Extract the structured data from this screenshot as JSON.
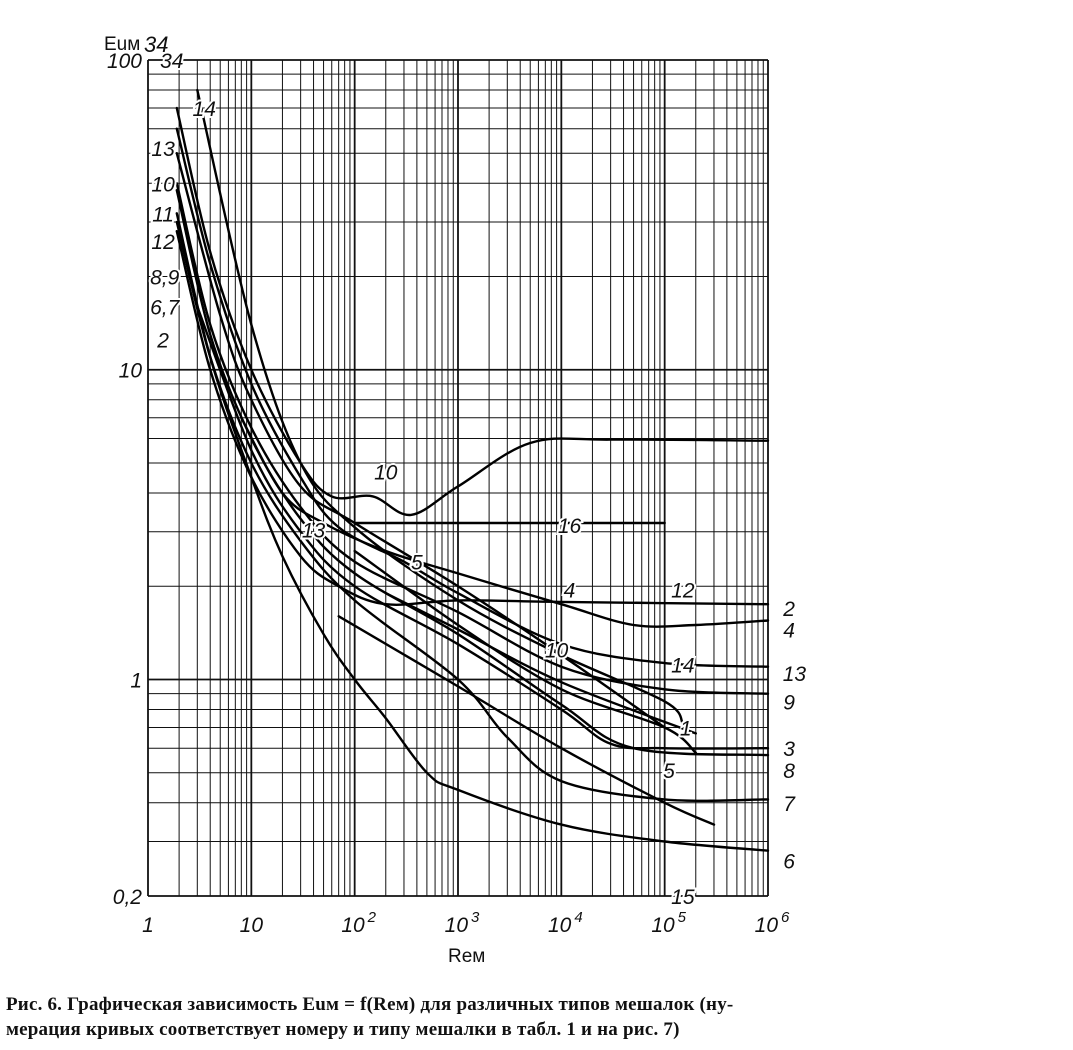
{
  "chart_data": {
    "type": "line",
    "x_scale": "log",
    "y_scale": "log",
    "xlim": [
      1,
      1000000
    ],
    "ylim": [
      0.2,
      100
    ],
    "grid": true,
    "ylabel": "Euм",
    "xlabel": "Reм",
    "y_top_marker": "34",
    "y_tick_labels": [
      {
        "value": 100,
        "label": "100"
      },
      {
        "value": 10,
        "label": "10"
      },
      {
        "value": 1,
        "label": "1"
      },
      {
        "value": 0.2,
        "label": "0,2"
      }
    ],
    "x_tick_labels": [
      {
        "value": 1,
        "label": "1",
        "exp": ""
      },
      {
        "value": 10,
        "label": "10",
        "exp": ""
      },
      {
        "value": 100,
        "label": "10",
        "exp": "2"
      },
      {
        "value": 1000,
        "label": "10",
        "exp": "3"
      },
      {
        "value": 10000,
        "label": "10",
        "exp": "4"
      },
      {
        "value": 100000,
        "label": "10",
        "exp": "5"
      },
      {
        "value": 1000000,
        "label": "10",
        "exp": "6"
      }
    ],
    "series": [
      {
        "name": "2",
        "points": [
          [
            1.9,
            28
          ],
          [
            4,
            10
          ],
          [
            10,
            4.5
          ],
          [
            30,
            2.5
          ],
          [
            70,
            2.0
          ],
          [
            200,
            1.75
          ],
          [
            1000,
            1.8
          ],
          [
            10000,
            1.78
          ],
          [
            1000000,
            1.75
          ]
        ]
      },
      {
        "name": "4",
        "points": [
          [
            8,
            7
          ],
          [
            20,
            4
          ],
          [
            50,
            3.2
          ],
          [
            200,
            2.6
          ],
          [
            1000,
            2.2
          ],
          [
            10000,
            1.75
          ],
          [
            50000,
            1.5
          ],
          [
            200000,
            1.5
          ],
          [
            1000000,
            1.55
          ]
        ]
      },
      {
        "name": "13",
        "points": [
          [
            1.9,
            60
          ],
          [
            4,
            22
          ],
          [
            10,
            9
          ],
          [
            30,
            4.5
          ],
          [
            70,
            3.1
          ],
          [
            300,
            2.4
          ],
          [
            1000,
            1.9
          ],
          [
            10000,
            1.3
          ],
          [
            100000,
            1.13
          ],
          [
            1000000,
            1.1
          ]
        ]
      },
      {
        "name": "9",
        "points": [
          [
            1.9,
            40
          ],
          [
            4,
            14
          ],
          [
            10,
            6.5
          ],
          [
            30,
            3.6
          ],
          [
            100,
            2.4
          ],
          [
            1000,
            1.65
          ],
          [
            10000,
            1.1
          ],
          [
            100000,
            0.93
          ],
          [
            1000000,
            0.9
          ]
        ]
      },
      {
        "name": "3",
        "points": [
          [
            3,
            16
          ],
          [
            10,
            5.5
          ],
          [
            30,
            3.0
          ],
          [
            100,
            2.0
          ],
          [
            1000,
            1.3
          ],
          [
            10000,
            0.8
          ],
          [
            30000,
            0.62
          ],
          [
            100000,
            0.6
          ],
          [
            1000000,
            0.6
          ]
        ]
      },
      {
        "name": "8",
        "points": [
          [
            1.9,
            38
          ],
          [
            4,
            13
          ],
          [
            10,
            6
          ],
          [
            30,
            3.3
          ],
          [
            100,
            2.2
          ],
          [
            1000,
            1.4
          ],
          [
            10000,
            0.83
          ],
          [
            50000,
            0.6
          ],
          [
            1000000,
            0.57
          ]
        ]
      },
      {
        "name": "7",
        "points": [
          [
            1.9,
            30
          ],
          [
            4,
            11
          ],
          [
            10,
            5
          ],
          [
            30,
            2.8
          ],
          [
            100,
            1.8
          ],
          [
            1000,
            1.0
          ],
          [
            3000,
            0.65
          ],
          [
            10000,
            0.47
          ],
          [
            100000,
            0.41
          ],
          [
            1000000,
            0.41
          ]
        ]
      },
      {
        "name": "6",
        "points": [
          [
            1.9,
            32
          ],
          [
            4,
            11
          ],
          [
            10,
            4.5
          ],
          [
            20,
            2.5
          ],
          [
            50,
            1.4
          ],
          [
            100,
            1.0
          ],
          [
            200,
            0.75
          ],
          [
            500,
            0.5
          ],
          [
            1000,
            0.44
          ],
          [
            10000,
            0.34
          ],
          [
            100000,
            0.3
          ],
          [
            1000000,
            0.28
          ]
        ]
      },
      {
        "name": "10",
        "points": [
          [
            1.9,
            70
          ],
          [
            4,
            24
          ],
          [
            10,
            10
          ],
          [
            30,
            5.0
          ],
          [
            60,
            3.9
          ],
          [
            150,
            3.9
          ],
          [
            350,
            3.4
          ],
          [
            1000,
            4.2
          ],
          [
            5000,
            5.8
          ],
          [
            30000,
            5.95
          ],
          [
            1000000,
            5.9
          ]
        ]
      },
      {
        "name": "16",
        "points": [
          [
            100,
            3.2
          ],
          [
            100000,
            3.2
          ]
        ]
      },
      {
        "name": "12",
        "points": [
          [
            1.9,
            50
          ],
          [
            5,
            15
          ],
          [
            10,
            8
          ],
          [
            30,
            4.2
          ],
          [
            100,
            3.2
          ],
          [
            1000,
            2.0
          ],
          [
            10000,
            1.2
          ],
          [
            100000,
            0.7
          ]
        ]
      },
      {
        "name": "1",
        "points": [
          [
            200,
            1.9
          ],
          [
            1000,
            1.45
          ],
          [
            10000,
            0.98
          ],
          [
            200000,
            0.67
          ]
        ]
      },
      {
        "name": "14",
        "points": [
          [
            3,
            80
          ],
          [
            10,
            14
          ],
          [
            30,
            5
          ],
          [
            100,
            3.1
          ],
          [
            1000,
            1.8
          ],
          [
            10000,
            1.2
          ],
          [
            100000,
            0.85
          ],
          [
            150000,
            0.72
          ]
        ]
      },
      {
        "name": "5",
        "points": [
          [
            100,
            2.6
          ],
          [
            1000,
            1.5
          ],
          [
            10000,
            0.93
          ],
          [
            100000,
            0.7
          ],
          [
            200000,
            0.58
          ]
        ]
      },
      {
        "name": "15",
        "points": [
          [
            70,
            1.6
          ],
          [
            1000,
            0.95
          ],
          [
            10000,
            0.6
          ],
          [
            100000,
            0.4
          ],
          [
            300000,
            0.34
          ]
        ]
      }
    ],
    "curve_labels": [
      {
        "text": "34",
        "x": 1.7,
        "y": 100
      },
      {
        "text": "14",
        "x": 3.5,
        "y": 70
      },
      {
        "text": "13",
        "x": 1.4,
        "y": 52
      },
      {
        "text": "10",
        "x": 1.4,
        "y": 40
      },
      {
        "text": "11",
        "x": 1.4,
        "y": 32
      },
      {
        "text": "12",
        "x": 1.4,
        "y": 26
      },
      {
        "text": "8,9",
        "x": 1.45,
        "y": 20
      },
      {
        "text": "6,7",
        "x": 1.45,
        "y": 16
      },
      {
        "text": "2",
        "x": 1.4,
        "y": 12.5
      },
      {
        "text": "10",
        "x": 200,
        "y": 4.7
      },
      {
        "text": "16",
        "x": 12000,
        "y": 3.15
      },
      {
        "text": "13",
        "x": 40,
        "y": 3.05
      },
      {
        "text": "5",
        "x": 400,
        "y": 2.4
      },
      {
        "text": "4",
        "x": 12000,
        "y": 1.95
      },
      {
        "text": "12",
        "x": 150000,
        "y": 1.95
      },
      {
        "text": "10",
        "x": 9000,
        "y": 1.25
      },
      {
        "text": "14",
        "x": 150000,
        "y": 1.12
      },
      {
        "text": "1",
        "x": 160000,
        "y": 0.7
      },
      {
        "text": "5",
        "x": 110000,
        "y": 0.51
      },
      {
        "text": "15",
        "x": 150000,
        "y": 0.2
      },
      {
        "text": "2",
        "x": 1600000,
        "y": 1.7
      },
      {
        "text": "4",
        "x": 1600000,
        "y": 1.45
      },
      {
        "text": "13",
        "x": 1800000,
        "y": 1.05
      },
      {
        "text": "9",
        "x": 1600000,
        "y": 0.85
      },
      {
        "text": "3",
        "x": 1600000,
        "y": 0.6
      },
      {
        "text": "8",
        "x": 1600000,
        "y": 0.51
      },
      {
        "text": "7",
        "x": 1600000,
        "y": 0.4
      },
      {
        "text": "6",
        "x": 1600000,
        "y": 0.26
      }
    ]
  },
  "caption": {
    "line1": "Рис.     6. Графическая зависимость Euм = f(Reм) для различных типов мешалок (ну-",
    "line2": "мерация кривых соответствует номеру и типу мешалки в табл.     1 и на рис.     7)"
  }
}
